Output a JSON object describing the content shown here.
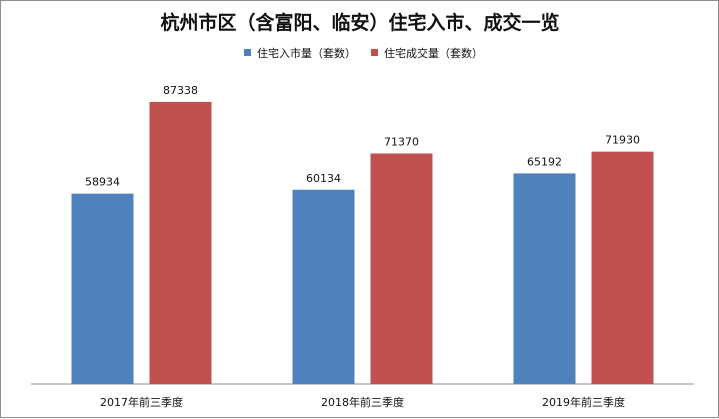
{
  "chart_data": {
    "type": "bar",
    "title": "杭州市区（含富阳、临安）住宅入市、成交一览",
    "categories": [
      "2017年前三季度",
      "2018年前三季度",
      "2019年前三季度"
    ],
    "series": [
      {
        "name": "住宅入市量（套数）",
        "color": "#4f81bd",
        "values": [
          58934,
          60134,
          65192
        ]
      },
      {
        "name": "住宅成交量（套数）",
        "color": "#c0504d",
        "values": [
          87338,
          71370,
          71930
        ]
      }
    ],
    "ylim": [
      0,
      100000
    ],
    "grid": false,
    "legend_position": "top-center"
  }
}
